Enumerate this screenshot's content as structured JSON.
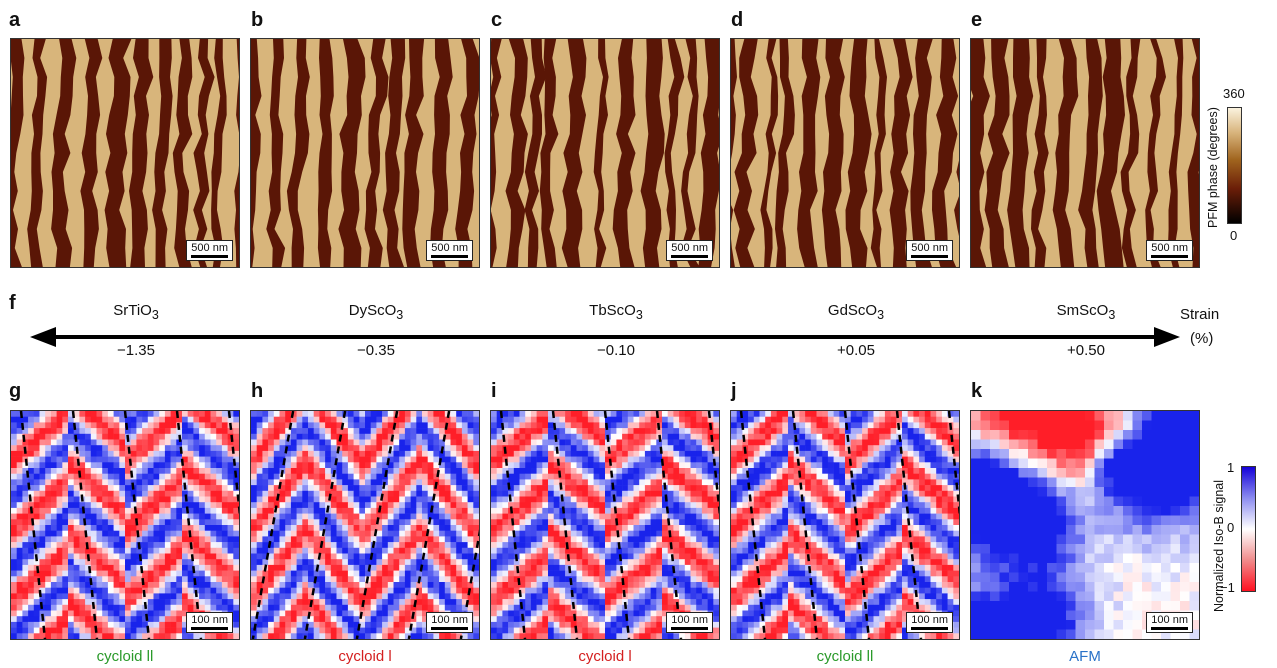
{
  "panels_top": [
    {
      "letter": "a"
    },
    {
      "letter": "b"
    },
    {
      "letter": "c"
    },
    {
      "letter": "d"
    },
    {
      "letter": "e"
    }
  ],
  "panels_bottom": [
    {
      "letter": "g",
      "caption": "cycloid ll",
      "caption_color": "#2a9a2a"
    },
    {
      "letter": "h",
      "caption": "cycloid l",
      "caption_color": "#d42020"
    },
    {
      "letter": "i",
      "caption": "cycloid l",
      "caption_color": "#d42020"
    },
    {
      "letter": "j",
      "caption": "cycloid ll",
      "caption_color": "#2a9a2a"
    },
    {
      "letter": "k",
      "caption": "AFM",
      "caption_color": "#2a72c8"
    }
  ],
  "scalebar_top": "500 nm",
  "scalebar_bottom": "100 nm",
  "strain_panel": {
    "letter": "f",
    "axis_label_1": "Strain",
    "axis_label_2": "(%)",
    "substrates": [
      {
        "base": "SrTiO",
        "sub": "3",
        "strain": "−1.35"
      },
      {
        "base": "DyScO",
        "sub": "3",
        "strain": "−0.35"
      },
      {
        "base": "TbScO",
        "sub": "3",
        "strain": "−0.10"
      },
      {
        "base": "GdScO",
        "sub": "3",
        "strain": "+0.05"
      },
      {
        "base": "SmScO",
        "sub": "3",
        "strain": "+0.50"
      }
    ]
  },
  "phase_colorbar": {
    "title": "PFM phase (degrees)",
    "max": "360",
    "min": "0",
    "colors": [
      "#000000",
      "#6b1e08",
      "#a0641e",
      "#d7b27a",
      "#fbf3df"
    ]
  },
  "isob_colorbar": {
    "title": "Normalized Iso-B signal",
    "ticks": [
      "1",
      "0",
      "−1"
    ],
    "colors": [
      "#1400d8",
      "#8c8cf0",
      "#ffffff",
      "#f08c8c",
      "#ff1020"
    ]
  }
}
